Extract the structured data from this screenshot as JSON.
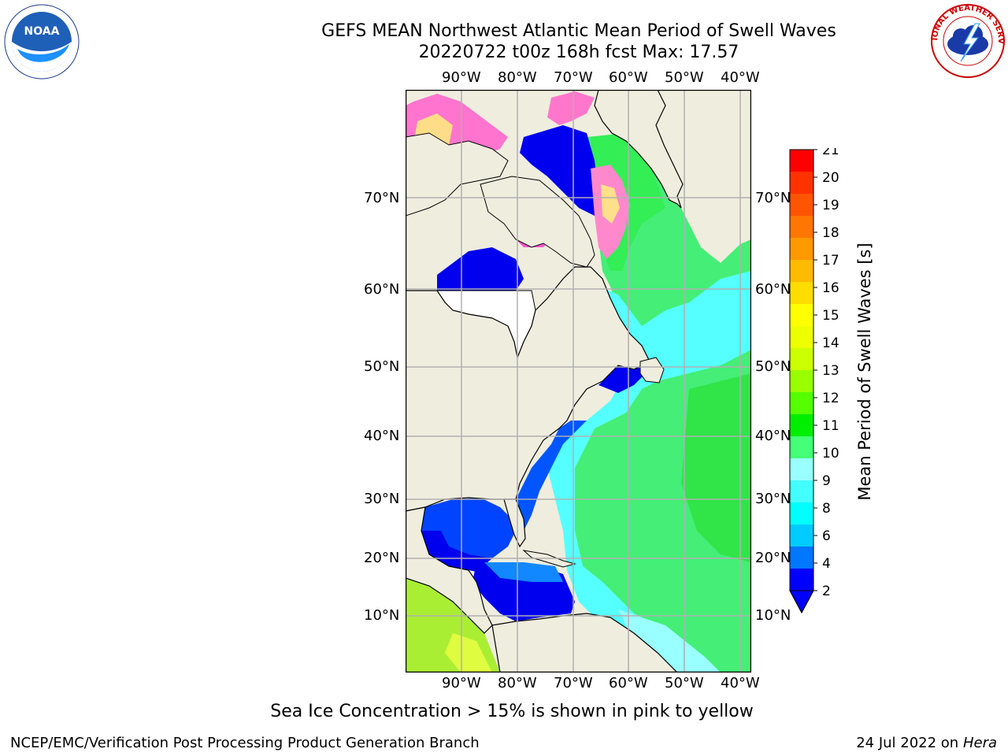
{
  "title": {
    "line1": "GEFS MEAN Northwest Atlantic Mean Period of Swell Waves",
    "line2": "20220722 t00z 168h fcst   Max: 17.57"
  },
  "map": {
    "lon_labels": [
      "90°W",
      "80°W",
      "70°W",
      "60°W",
      "50°W",
      "40°W"
    ],
    "lat_labels": [
      "70°N",
      "60°N",
      "50°N",
      "40°N",
      "30°N",
      "20°N",
      "10°N"
    ],
    "colors": {
      "land": "#efedde",
      "grid": "#b0b0b0",
      "coast": "#000000",
      "ice_pink": "#ff66cc",
      "ice_yellow": "#ffe680"
    }
  },
  "colorbar": {
    "label": "Mean Period of Swell Waves [s]",
    "ticks": [
      "21",
      "20",
      "19",
      "18",
      "17",
      "16",
      "15",
      "14",
      "13",
      "12",
      "11",
      "10",
      "9",
      "8",
      "6",
      "4",
      "2"
    ],
    "colors": [
      "#ff0000",
      "#ff3300",
      "#ff5500",
      "#ff7700",
      "#ff9900",
      "#ffbb00",
      "#ffdd00",
      "#ffff00",
      "#eeff00",
      "#ccff00",
      "#99ff00",
      "#55ff00",
      "#00ee00",
      "#44ff77",
      "#99ffff",
      "#44ffff",
      "#00ffff",
      "#00ccff",
      "#0077ff",
      "#0000ff"
    ]
  },
  "caption": "Sea Ice Concentration > 15% is shown in pink to yellow",
  "footer": {
    "left": "NCEP/EMC/Verification Post Processing Product Generation Branch",
    "date": "24 Jul 2022 on ",
    "machine": "Hera"
  },
  "logos": {
    "left": {
      "text": "NOAA",
      "icon": "noaa-logo"
    },
    "right": {
      "text": "NATIONAL WEATHER SERVICE",
      "icon": "nws-logo"
    }
  }
}
